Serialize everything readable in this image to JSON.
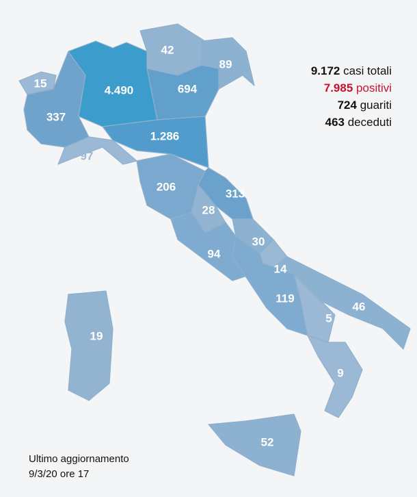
{
  "summary": [
    {
      "number": "9.172",
      "label": "casi totali"
    },
    {
      "number": "7.985",
      "label": "positivi"
    },
    {
      "number": "724",
      "label": "guariti"
    },
    {
      "number": "463",
      "label": "deceduti"
    }
  ],
  "regions": [
    {
      "value": "15"
    },
    {
      "value": "337"
    },
    {
      "value": "97"
    },
    {
      "value": "4.490"
    },
    {
      "value": "42"
    },
    {
      "value": "694"
    },
    {
      "value": "89"
    },
    {
      "value": "1.286"
    },
    {
      "value": "206"
    },
    {
      "value": "313"
    },
    {
      "value": "28"
    },
    {
      "value": "94"
    },
    {
      "value": "30"
    },
    {
      "value": "14"
    },
    {
      "value": "119"
    },
    {
      "value": "46"
    },
    {
      "value": "5"
    },
    {
      "value": "9"
    },
    {
      "value": "52"
    },
    {
      "value": "19"
    }
  ],
  "footer": {
    "line1": "Ultimo aggiornamento",
    "line2": "9/3/20 ore 17"
  }
}
